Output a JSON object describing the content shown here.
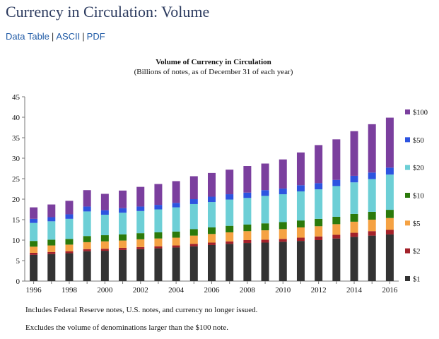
{
  "page": {
    "title": "Currency in Circulation: Volume",
    "links": [
      "Data Table",
      "ASCII",
      "PDF"
    ],
    "separator": "|"
  },
  "notes": [
    "Includes Federal Reserve notes, U.S. notes, and currency no longer issued.",
    "Excludes the volume of denominations larger than the $100 note."
  ],
  "chart_data": {
    "type": "bar",
    "stacked": true,
    "title": "Volume of Currency in Circulation",
    "subtitle": "(Billions of notes, as of December 31 of each year)",
    "xlabel": "",
    "ylabel": "",
    "ylim": [
      0,
      45
    ],
    "yticks": [
      0,
      5,
      10,
      15,
      20,
      25,
      30,
      35,
      40,
      45
    ],
    "grid": false,
    "legend_position": "right",
    "categories": [
      "1996",
      "1997",
      "1998",
      "1999",
      "2000",
      "2001",
      "2002",
      "2003",
      "2004",
      "2005",
      "2006",
      "2007",
      "2008",
      "2009",
      "2010",
      "2011",
      "2012",
      "2013",
      "2014",
      "2015",
      "2016"
    ],
    "xtick_labels": [
      "1996",
      "1998",
      "2000",
      "2002",
      "2004",
      "2006",
      "2008",
      "2010",
      "2012",
      "2014",
      "2016"
    ],
    "series": [
      {
        "name": "$1",
        "color": "#333333",
        "values": [
          6.4,
          6.6,
          6.8,
          7.3,
          7.4,
          7.6,
          7.8,
          8.0,
          8.2,
          8.5,
          8.8,
          9.1,
          9.3,
          9.4,
          9.6,
          9.8,
          10.0,
          10.4,
          10.8,
          11.1,
          11.4
        ]
      },
      {
        "name": "$2",
        "color": "#a3222a",
        "values": [
          0.5,
          0.5,
          0.5,
          0.5,
          0.5,
          0.5,
          0.5,
          0.5,
          0.5,
          0.6,
          0.6,
          0.6,
          0.7,
          0.7,
          0.7,
          0.8,
          0.9,
          0.9,
          1.0,
          1.1,
          1.1
        ]
      },
      {
        "name": "$5",
        "color": "#f5a243",
        "values": [
          1.5,
          1.6,
          1.6,
          1.7,
          1.8,
          1.8,
          1.9,
          1.9,
          1.9,
          2.0,
          2.1,
          2.2,
          2.2,
          2.3,
          2.4,
          2.5,
          2.5,
          2.6,
          2.7,
          2.8,
          2.9
        ]
      },
      {
        "name": "$10",
        "color": "#2b7a0b",
        "values": [
          1.4,
          1.4,
          1.4,
          1.5,
          1.5,
          1.5,
          1.5,
          1.5,
          1.5,
          1.6,
          1.6,
          1.6,
          1.6,
          1.7,
          1.7,
          1.7,
          1.8,
          1.8,
          1.9,
          1.9,
          2.0
        ]
      },
      {
        "name": "$20",
        "color": "#6dcfd6",
        "values": [
          4.4,
          4.5,
          4.9,
          6.0,
          5.0,
          5.3,
          5.4,
          5.6,
          5.9,
          6.1,
          6.2,
          6.4,
          6.5,
          6.7,
          6.8,
          7.1,
          7.2,
          7.5,
          7.7,
          8.0,
          8.6
        ]
      },
      {
        "name": "$50",
        "color": "#2d54e0",
        "values": [
          1.0,
          1.0,
          1.1,
          1.2,
          1.1,
          1.1,
          1.1,
          1.1,
          1.1,
          1.2,
          1.3,
          1.3,
          1.3,
          1.4,
          1.4,
          1.5,
          1.5,
          1.5,
          1.6,
          1.6,
          1.7
        ]
      },
      {
        "name": "$100",
        "color": "#7b3f9e",
        "values": [
          2.8,
          3.1,
          3.3,
          4.0,
          4.0,
          4.3,
          4.8,
          5.1,
          5.3,
          5.6,
          5.8,
          6.0,
          6.5,
          6.5,
          7.1,
          8.0,
          9.3,
          9.9,
          10.9,
          11.8,
          12.2
        ]
      }
    ]
  }
}
